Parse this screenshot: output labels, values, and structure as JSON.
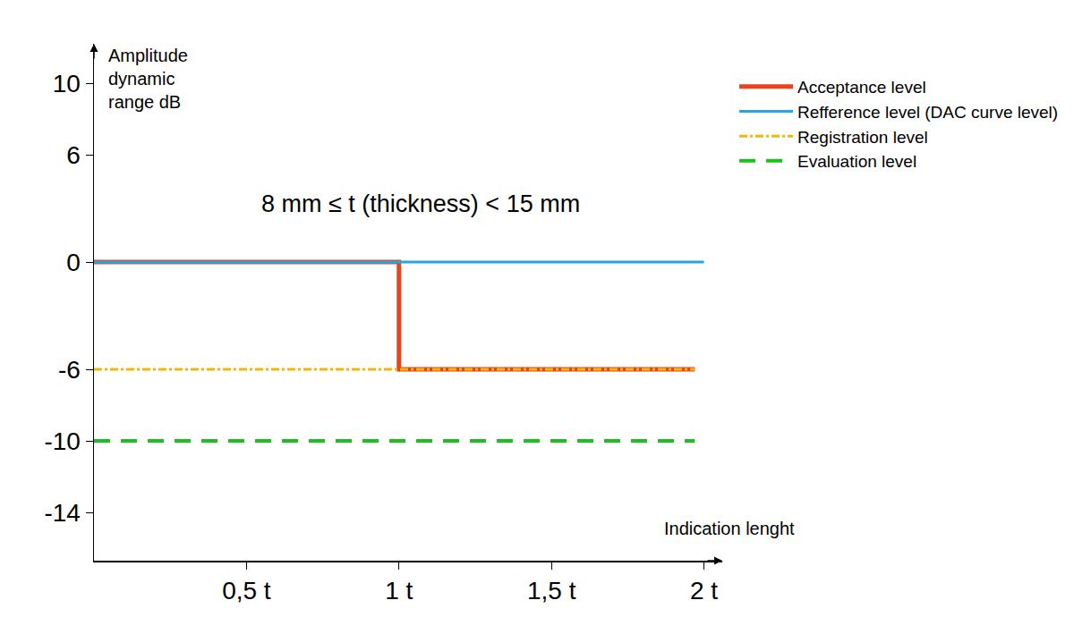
{
  "chart_data": {
    "type": "line",
    "annotation": "8 mm ≤ t (thickness) < 15 mm",
    "x_label": "Indication lenght",
    "y_label": "Amplitude dynamic range dB",
    "xlim": [
      0,
      2.06
    ],
    "ylim": [
      -16.7,
      12.2
    ],
    "xticks": [
      {
        "value": 0.5,
        "label": "0,5 t"
      },
      {
        "value": 1,
        "label": "1 t"
      },
      {
        "value": 1.5,
        "label": "1,5 t"
      },
      {
        "value": 2,
        "label": "2 t"
      }
    ],
    "yticks": [
      -14,
      -10,
      -6,
      0,
      6,
      10
    ],
    "grid": false,
    "legend": "top right",
    "series": [
      {
        "name": "Acceptance level",
        "color": "#e8431c",
        "line_style": "solid",
        "x": [
          0,
          1,
          1,
          1.97
        ],
        "values": [
          0,
          0,
          -6,
          -6
        ]
      },
      {
        "name": "Refference level (DAC curve level)",
        "color": "#22a8df",
        "line_style": "solid",
        "x": [
          0,
          2
        ],
        "values": [
          0,
          0
        ]
      },
      {
        "name": "Registration level",
        "color": "#f5b800",
        "line_style": "dashdot",
        "x": [
          0,
          1.97
        ],
        "values": [
          -6,
          -6
        ]
      },
      {
        "name": "Evaluation level",
        "color": "#1fbf1f",
        "line_style": "dash",
        "x": [
          0,
          1.97
        ],
        "values": [
          -10,
          -10
        ]
      }
    ]
  }
}
